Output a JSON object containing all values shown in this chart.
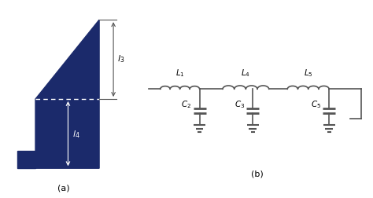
{
  "bg_color": "#ffffff",
  "shape_color": "#1b2a6b",
  "line_color": "#555555",
  "figsize": [
    4.74,
    2.52
  ],
  "dpi": 100,
  "label_a": "(a)",
  "label_b": "(b)",
  "L_labels": [
    "$L_1$",
    "$L_4$",
    "$L_5$"
  ],
  "C_labels": [
    "$C_2$",
    "$C_3$",
    "$C_5$"
  ]
}
